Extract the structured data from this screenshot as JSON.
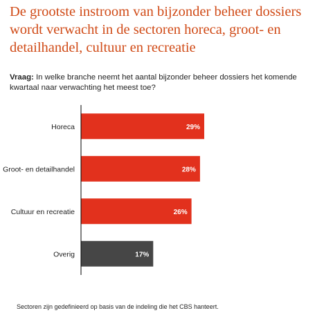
{
  "header": {
    "title": "De grootste instroom van bijzonder beheer dossiers wordt verwacht in de sectoren horeca, groot- en detailhandel, cultuur en recreatie"
  },
  "question": {
    "label": "Vraag:",
    "text": "In welke branche neemt het aantal bijzonder beheer dossiers het komende kwartaal naar verwachting het meest toe?"
  },
  "footnote": "Sectoren zijn gedefinieerd op basis van de indeling die het CBS hanteert.",
  "colors": {
    "primary_bar": "#e2311d",
    "other_bar": "#464646",
    "title": "#d04a16",
    "axis": "#000000"
  },
  "chart_data": {
    "type": "bar",
    "orientation": "horizontal",
    "categories": [
      "Horeca",
      "Groot- en detailhandel",
      "Cultuur en recreatie",
      "Overig"
    ],
    "values": [
      29,
      28,
      26,
      17
    ],
    "data_labels": [
      "29%",
      "28%",
      "26%",
      "17%"
    ],
    "bar_colors": [
      "#e2311d",
      "#e2311d",
      "#e2311d",
      "#464646"
    ],
    "unit": "%",
    "xlim": [
      0,
      100
    ],
    "grid": false,
    "legend": "none"
  }
}
